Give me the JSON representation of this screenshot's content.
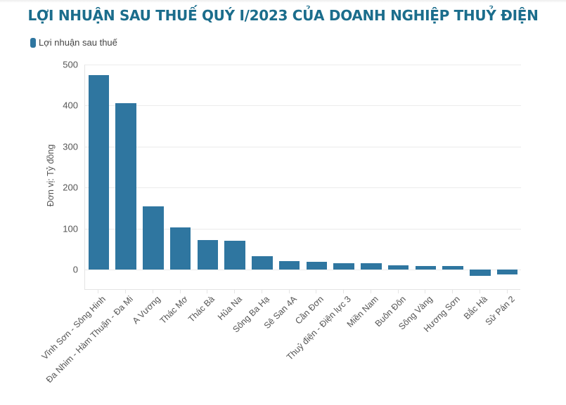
{
  "title": "LỢI NHUẬN SAU THUẾ QUÝ I/2023 CỦA DOANH NGHIỆP THUỶ ĐIỆN",
  "legend": {
    "label": "Lợi nhuận sau thuế",
    "color": "#2f76a0"
  },
  "colors": {
    "title": "#1b6d8c",
    "bar": "#2f76a0"
  },
  "chart_data": {
    "type": "bar",
    "title": "LỢI NHUẬN SAU THUẾ QUÝ I/2023 CỦA DOANH NGHIỆP THUỶ ĐIỆN",
    "xlabel": "",
    "ylabel": "Đơn vị: Tỷ đồng",
    "ylim": [
      -50,
      500
    ],
    "yticks": [
      0,
      100,
      200,
      300,
      400,
      500
    ],
    "grid": true,
    "legend_position": "top-left",
    "categories": [
      "Vĩnh Sơn - Sông Hinh",
      "Đa Nhim - Hàm Thuận - Đa Mi",
      "A Vương",
      "Thác Mơ",
      "Thác Bà",
      "Hủa Na",
      "Sông Ba Hạ",
      "Sê San 4A",
      "Cần Đơn",
      "Thuỷ điện - Điện lực 3",
      "Miền Nam",
      "Buôn Đôn",
      "Sông Vàng",
      "Hương Sơn",
      "Bắc Hà",
      "Sử Pán 2"
    ],
    "series": [
      {
        "name": "Lợi nhuận sau thuế",
        "values": [
          474,
          406,
          154,
          102,
          72,
          70,
          32,
          21,
          18,
          16,
          15,
          11,
          9,
          9,
          -15,
          -12
        ]
      }
    ]
  }
}
